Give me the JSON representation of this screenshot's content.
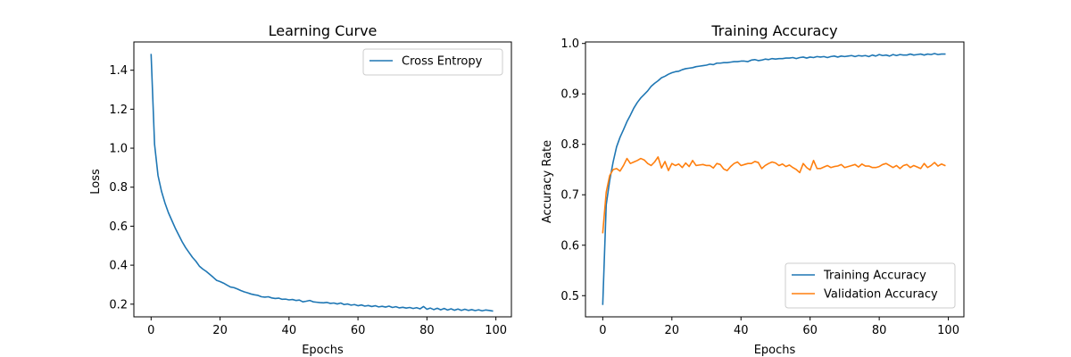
{
  "colors": {
    "series1": "#1f77b4",
    "series2": "#ff7f0e"
  },
  "chart_data": [
    {
      "type": "line",
      "title": "Learning Curve",
      "xlabel": "Epochs",
      "ylabel": "Loss",
      "xlim": [
        -5,
        104.5
      ],
      "ylim": [
        0.135,
        1.545
      ],
      "xticks": [
        0,
        20,
        40,
        60,
        80,
        100
      ],
      "yticks": [
        0.2,
        0.4,
        0.6,
        0.8,
        1.0,
        1.2,
        1.4
      ],
      "ytick_labels": [
        "0.2",
        "0.4",
        "0.6",
        "0.8",
        "1.0",
        "1.2",
        "1.4"
      ],
      "legend": "upper right",
      "grid": false,
      "series": [
        {
          "name": "Cross Entropy",
          "color": "#1f77b4",
          "x": [
            0,
            1,
            2,
            3,
            4,
            5,
            6,
            7,
            8,
            9,
            10,
            11,
            12,
            13,
            14,
            15,
            16,
            17,
            18,
            19,
            20,
            21,
            22,
            23,
            24,
            25,
            26,
            27,
            28,
            29,
            30,
            31,
            32,
            33,
            34,
            35,
            36,
            37,
            38,
            39,
            40,
            41,
            42,
            43,
            44,
            45,
            46,
            47,
            48,
            49,
            50,
            51,
            52,
            53,
            54,
            55,
            56,
            57,
            58,
            59,
            60,
            61,
            62,
            63,
            64,
            65,
            66,
            67,
            68,
            69,
            70,
            71,
            72,
            73,
            74,
            75,
            76,
            77,
            78,
            79,
            80,
            81,
            82,
            83,
            84,
            85,
            86,
            87,
            88,
            89,
            90,
            91,
            92,
            93,
            94,
            95,
            96,
            97,
            98,
            99
          ],
          "y": [
            1.48,
            1.02,
            0.86,
            0.78,
            0.72,
            0.67,
            0.63,
            0.59,
            0.555,
            0.52,
            0.49,
            0.465,
            0.44,
            0.42,
            0.395,
            0.38,
            0.368,
            0.353,
            0.338,
            0.322,
            0.316,
            0.308,
            0.298,
            0.288,
            0.285,
            0.278,
            0.27,
            0.263,
            0.258,
            0.252,
            0.248,
            0.245,
            0.238,
            0.236,
            0.238,
            0.232,
            0.229,
            0.231,
            0.225,
            0.226,
            0.222,
            0.224,
            0.219,
            0.221,
            0.212,
            0.215,
            0.219,
            0.212,
            0.21,
            0.208,
            0.207,
            0.209,
            0.204,
            0.206,
            0.201,
            0.206,
            0.198,
            0.201,
            0.195,
            0.198,
            0.192,
            0.196,
            0.19,
            0.193,
            0.188,
            0.192,
            0.186,
            0.189,
            0.185,
            0.19,
            0.183,
            0.187,
            0.181,
            0.184,
            0.18,
            0.183,
            0.178,
            0.182,
            0.176,
            0.188,
            0.174,
            0.18,
            0.172,
            0.179,
            0.171,
            0.178,
            0.17,
            0.176,
            0.169,
            0.175,
            0.168,
            0.174,
            0.168,
            0.172,
            0.167,
            0.171,
            0.166,
            0.17,
            0.168,
            0.165
          ]
        }
      ]
    },
    {
      "type": "line",
      "title": "Training Accuracy",
      "xlabel": "Epochs",
      "ylabel": "Accuracy Rate",
      "xlim": [
        -5,
        104.5
      ],
      "ylim": [
        0.458,
        1.003
      ],
      "xticks": [
        0,
        20,
        40,
        60,
        80,
        100
      ],
      "yticks": [
        0.5,
        0.6,
        0.7,
        0.8,
        0.9,
        1.0
      ],
      "ytick_labels": [
        "0.5",
        "0.6",
        "0.7",
        "0.8",
        "0.9",
        "1.0"
      ],
      "legend": "lower right",
      "grid": false,
      "series": [
        {
          "name": "Training Accuracy",
          "color": "#1f77b4",
          "x": [
            0,
            1,
            2,
            3,
            4,
            5,
            6,
            7,
            8,
            9,
            10,
            11,
            12,
            13,
            14,
            15,
            16,
            17,
            18,
            19,
            20,
            21,
            22,
            23,
            24,
            25,
            26,
            27,
            28,
            29,
            30,
            31,
            32,
            33,
            34,
            35,
            36,
            37,
            38,
            39,
            40,
            41,
            42,
            43,
            44,
            45,
            46,
            47,
            48,
            49,
            50,
            51,
            52,
            53,
            54,
            55,
            56,
            57,
            58,
            59,
            60,
            61,
            62,
            63,
            64,
            65,
            66,
            67,
            68,
            69,
            70,
            71,
            72,
            73,
            74,
            75,
            76,
            77,
            78,
            79,
            80,
            81,
            82,
            83,
            84,
            85,
            86,
            87,
            88,
            89,
            90,
            91,
            92,
            93,
            94,
            95,
            96,
            97,
            98,
            99
          ],
          "y": [
            0.483,
            0.68,
            0.728,
            0.765,
            0.795,
            0.814,
            0.829,
            0.845,
            0.858,
            0.872,
            0.883,
            0.892,
            0.899,
            0.906,
            0.915,
            0.921,
            0.926,
            0.932,
            0.935,
            0.939,
            0.942,
            0.944,
            0.945,
            0.948,
            0.95,
            0.951,
            0.952,
            0.954,
            0.955,
            0.956,
            0.957,
            0.959,
            0.958,
            0.961,
            0.961,
            0.962,
            0.962,
            0.963,
            0.964,
            0.964,
            0.965,
            0.965,
            0.964,
            0.967,
            0.968,
            0.966,
            0.967,
            0.969,
            0.968,
            0.97,
            0.969,
            0.97,
            0.97,
            0.971,
            0.971,
            0.972,
            0.97,
            0.972,
            0.973,
            0.971,
            0.973,
            0.972,
            0.974,
            0.973,
            0.974,
            0.972,
            0.974,
            0.975,
            0.973,
            0.975,
            0.974,
            0.975,
            0.976,
            0.974,
            0.976,
            0.975,
            0.976,
            0.974,
            0.977,
            0.975,
            0.978,
            0.976,
            0.977,
            0.975,
            0.978,
            0.976,
            0.978,
            0.977,
            0.977,
            0.979,
            0.977,
            0.978,
            0.979,
            0.977,
            0.979,
            0.978,
            0.98,
            0.978,
            0.979,
            0.979
          ]
        },
        {
          "name": "Validation Accuracy",
          "color": "#ff7f0e",
          "x": [
            0,
            1,
            2,
            3,
            4,
            5,
            6,
            7,
            8,
            9,
            10,
            11,
            12,
            13,
            14,
            15,
            16,
            17,
            18,
            19,
            20,
            21,
            22,
            23,
            24,
            25,
            26,
            27,
            28,
            29,
            30,
            31,
            32,
            33,
            34,
            35,
            36,
            37,
            38,
            39,
            40,
            41,
            42,
            43,
            44,
            45,
            46,
            47,
            48,
            49,
            50,
            51,
            52,
            53,
            54,
            55,
            56,
            57,
            58,
            59,
            60,
            61,
            62,
            63,
            64,
            65,
            66,
            67,
            68,
            69,
            70,
            71,
            72,
            73,
            74,
            75,
            76,
            77,
            78,
            79,
            80,
            81,
            82,
            83,
            84,
            85,
            86,
            87,
            88,
            89,
            90,
            91,
            92,
            93,
            94,
            95,
            96,
            97,
            98,
            99
          ],
          "y": [
            0.625,
            0.705,
            0.738,
            0.75,
            0.752,
            0.747,
            0.758,
            0.772,
            0.762,
            0.765,
            0.768,
            0.772,
            0.769,
            0.762,
            0.758,
            0.765,
            0.775,
            0.753,
            0.766,
            0.748,
            0.762,
            0.758,
            0.761,
            0.754,
            0.763,
            0.756,
            0.768,
            0.758,
            0.759,
            0.76,
            0.758,
            0.758,
            0.753,
            0.762,
            0.76,
            0.751,
            0.748,
            0.756,
            0.762,
            0.765,
            0.758,
            0.76,
            0.762,
            0.762,
            0.766,
            0.764,
            0.752,
            0.758,
            0.762,
            0.765,
            0.763,
            0.758,
            0.761,
            0.756,
            0.759,
            0.754,
            0.75,
            0.744,
            0.762,
            0.754,
            0.749,
            0.768,
            0.752,
            0.752,
            0.755,
            0.758,
            0.754,
            0.756,
            0.757,
            0.76,
            0.754,
            0.756,
            0.758,
            0.76,
            0.755,
            0.761,
            0.757,
            0.757,
            0.754,
            0.754,
            0.756,
            0.76,
            0.762,
            0.758,
            0.754,
            0.758,
            0.752,
            0.758,
            0.76,
            0.754,
            0.758,
            0.755,
            0.752,
            0.762,
            0.754,
            0.758,
            0.764,
            0.757,
            0.761,
            0.758
          ]
        }
      ]
    }
  ]
}
